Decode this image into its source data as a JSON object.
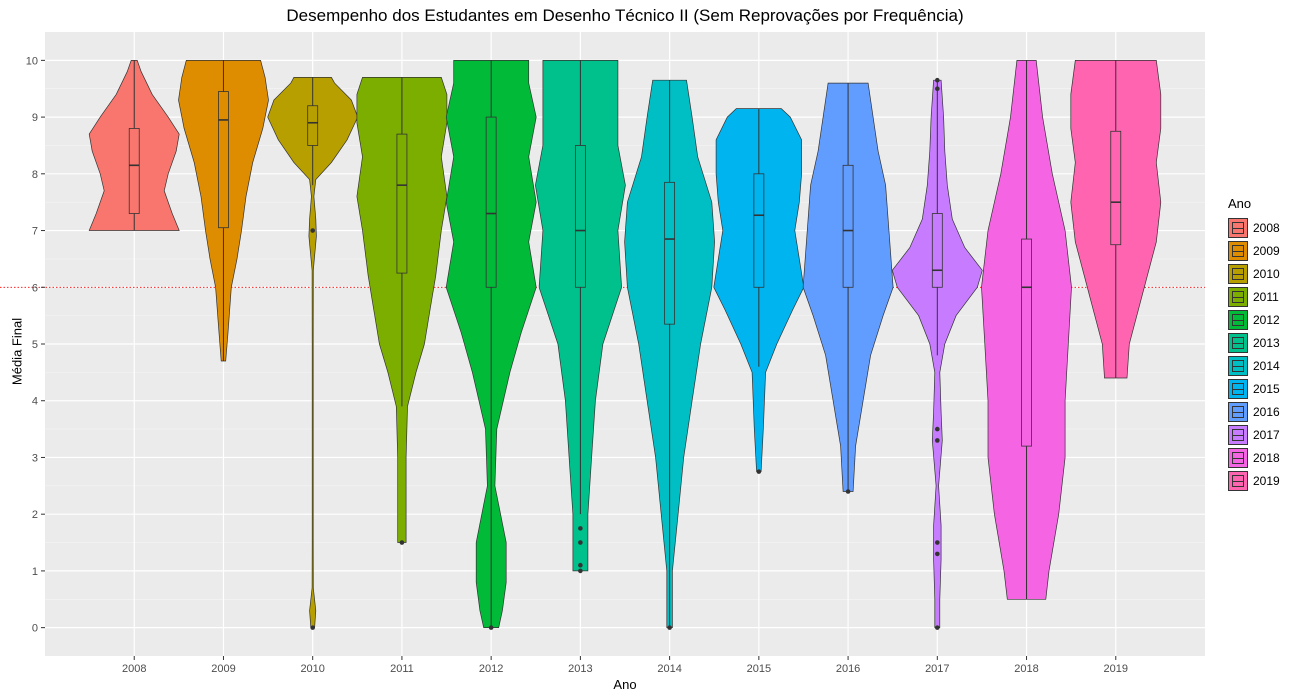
{
  "chart_data": {
    "type": "violin",
    "title": "Desempenho dos Estudantes em Desenho Técnico II (Sem Reprovações por Frequência)",
    "xlabel": "Ano",
    "ylabel": "Média Final",
    "ylim": [
      -0.5,
      10.5
    ],
    "yticks": [
      "0",
      "1",
      "2",
      "3",
      "4",
      "5",
      "6",
      "7",
      "8",
      "9",
      "10"
    ],
    "reference_line": {
      "y": 6,
      "color": "#ff0000",
      "style": "dotted"
    },
    "legend": {
      "title": "Ano",
      "position": "right"
    },
    "grid": true,
    "series": [
      {
        "name": "2008",
        "color": "#F8766D",
        "min": 7.0,
        "max": 10.0,
        "q1": 7.3,
        "median": 8.15,
        "q3": 8.8,
        "whisker_low": 7.0,
        "whisker_high": 10.0,
        "outliers": [],
        "density": [
          [
            7.0,
            0.45
          ],
          [
            7.3,
            0.38
          ],
          [
            7.7,
            0.3
          ],
          [
            8.0,
            0.34
          ],
          [
            8.4,
            0.42
          ],
          [
            8.7,
            0.45
          ],
          [
            9.0,
            0.34
          ],
          [
            9.4,
            0.18
          ],
          [
            9.8,
            0.07
          ],
          [
            10.0,
            0.03
          ]
        ]
      },
      {
        "name": "2009",
        "color": "#DE8C00",
        "min": 4.7,
        "max": 10.0,
        "q1": 7.05,
        "median": 8.95,
        "q3": 9.45,
        "whisker_low": 4.7,
        "whisker_high": 10.0,
        "outliers": [],
        "density": [
          [
            4.7,
            0.02
          ],
          [
            5.2,
            0.04
          ],
          [
            6.0,
            0.07
          ],
          [
            6.5,
            0.12
          ],
          [
            7.0,
            0.16
          ],
          [
            7.6,
            0.2
          ],
          [
            8.2,
            0.26
          ],
          [
            8.8,
            0.35
          ],
          [
            9.3,
            0.4
          ],
          [
            9.7,
            0.37
          ],
          [
            10.0,
            0.33
          ]
        ]
      },
      {
        "name": "2010",
        "color": "#B79F00",
        "min": 0.0,
        "max": 9.7,
        "q1": 8.5,
        "median": 8.9,
        "q3": 9.2,
        "whisker_low": 7.8,
        "whisker_high": 9.7,
        "outliers": [
          0.0,
          7.0
        ],
        "density": [
          [
            0.0,
            0.03
          ],
          [
            0.3,
            0.05
          ],
          [
            0.7,
            0.01
          ],
          [
            1.5,
            0.008
          ],
          [
            3.0,
            0.008
          ],
          [
            5.0,
            0.008
          ],
          [
            6.3,
            0.01
          ],
          [
            6.9,
            0.06
          ],
          [
            7.2,
            0.05
          ],
          [
            7.6,
            0.02
          ],
          [
            7.9,
            0.05
          ],
          [
            8.2,
            0.3
          ],
          [
            8.6,
            0.55
          ],
          [
            9.0,
            0.72
          ],
          [
            9.3,
            0.62
          ],
          [
            9.6,
            0.35
          ],
          [
            9.7,
            0.3
          ]
        ]
      },
      {
        "name": "2011",
        "color": "#7CAE00",
        "min": 1.5,
        "max": 9.7,
        "q1": 6.25,
        "median": 7.8,
        "q3": 8.7,
        "whisker_low": 3.9,
        "whisker_high": 9.7,
        "outliers": [
          1.5
        ],
        "density": [
          [
            1.5,
            0.015
          ],
          [
            3.0,
            0.015
          ],
          [
            3.9,
            0.02
          ],
          [
            4.5,
            0.05
          ],
          [
            5.0,
            0.08
          ],
          [
            5.6,
            0.1
          ],
          [
            6.2,
            0.12
          ],
          [
            7.0,
            0.14
          ],
          [
            7.6,
            0.16
          ],
          [
            8.3,
            0.14
          ],
          [
            8.9,
            0.16
          ],
          [
            9.4,
            0.16
          ],
          [
            9.7,
            0.14
          ]
        ]
      },
      {
        "name": "2012",
        "color": "#00BA38",
        "min": 0.0,
        "max": 10.0,
        "q1": 6.0,
        "median": 7.3,
        "q3": 9.0,
        "whisker_low": 0.0,
        "whisker_high": 10.0,
        "outliers": [
          0.0
        ],
        "density": [
          [
            0.0,
            0.02
          ],
          [
            0.3,
            0.03
          ],
          [
            0.8,
            0.04
          ],
          [
            1.5,
            0.04
          ],
          [
            2.5,
            0.01
          ],
          [
            3.5,
            0.015
          ],
          [
            4.5,
            0.05
          ],
          [
            5.2,
            0.08
          ],
          [
            6.0,
            0.12
          ],
          [
            6.8,
            0.1
          ],
          [
            7.5,
            0.12
          ],
          [
            8.3,
            0.1
          ],
          [
            9.0,
            0.12
          ],
          [
            9.6,
            0.1
          ],
          [
            10.0,
            0.1
          ]
        ]
      },
      {
        "name": "2013",
        "color": "#00C08B",
        "min": 1.0,
        "max": 10.0,
        "q1": 6.0,
        "median": 7.0,
        "q3": 8.5,
        "whisker_low": 2.0,
        "whisker_high": 10.0,
        "outliers": [
          1.0,
          1.1,
          1.5,
          1.75
        ],
        "density": [
          [
            1.0,
            0.02
          ],
          [
            1.5,
            0.02
          ],
          [
            2.0,
            0.02
          ],
          [
            3.0,
            0.03
          ],
          [
            4.0,
            0.04
          ],
          [
            5.0,
            0.06
          ],
          [
            6.0,
            0.11
          ],
          [
            7.0,
            0.1
          ],
          [
            7.8,
            0.12
          ],
          [
            8.5,
            0.1
          ],
          [
            9.3,
            0.1
          ],
          [
            10.0,
            0.1
          ]
        ]
      },
      {
        "name": "2014",
        "color": "#00BFC4",
        "min": 0.0,
        "max": 9.65,
        "q1": 5.35,
        "median": 6.85,
        "q3": 7.85,
        "whisker_low": 0.0,
        "whisker_high": 9.65,
        "outliers": [
          0.0
        ],
        "density": [
          [
            0.0,
            0.01
          ],
          [
            1.0,
            0.01
          ],
          [
            2.0,
            0.03
          ],
          [
            3.0,
            0.05
          ],
          [
            4.0,
            0.08
          ],
          [
            5.0,
            0.11
          ],
          [
            6.0,
            0.15
          ],
          [
            6.8,
            0.16
          ],
          [
            7.5,
            0.15
          ],
          [
            8.3,
            0.1
          ],
          [
            9.0,
            0.08
          ],
          [
            9.65,
            0.06
          ]
        ]
      },
      {
        "name": "2015",
        "color": "#00B4F0",
        "min": 2.75,
        "max": 9.15,
        "q1": 6.0,
        "median": 7.27,
        "q3": 8.0,
        "whisker_low": 4.6,
        "whisker_high": 9.15,
        "outliers": [
          2.75
        ],
        "density": [
          [
            2.75,
            0.01
          ],
          [
            3.5,
            0.02
          ],
          [
            4.5,
            0.03
          ],
          [
            5.0,
            0.08
          ],
          [
            5.6,
            0.15
          ],
          [
            6.0,
            0.2
          ],
          [
            6.5,
            0.18
          ],
          [
            7.0,
            0.16
          ],
          [
            7.5,
            0.18
          ],
          [
            8.0,
            0.19
          ],
          [
            8.6,
            0.19
          ],
          [
            9.0,
            0.14
          ],
          [
            9.15,
            0.1
          ]
        ]
      },
      {
        "name": "2016",
        "color": "#619CFF",
        "min": 2.4,
        "max": 9.6,
        "q1": 6.0,
        "median": 7.0,
        "q3": 8.15,
        "whisker_low": 2.4,
        "whisker_high": 9.6,
        "outliers": [
          2.4
        ],
        "density": [
          [
            2.4,
            0.02
          ],
          [
            3.2,
            0.03
          ],
          [
            4.0,
            0.06
          ],
          [
            4.8,
            0.09
          ],
          [
            5.5,
            0.14
          ],
          [
            6.0,
            0.18
          ],
          [
            6.6,
            0.17
          ],
          [
            7.2,
            0.16
          ],
          [
            7.8,
            0.15
          ],
          [
            8.4,
            0.12
          ],
          [
            9.0,
            0.1
          ],
          [
            9.6,
            0.08
          ]
        ]
      },
      {
        "name": "2017",
        "color": "#C77CFF",
        "min": 0.0,
        "max": 9.65,
        "q1": 6.0,
        "median": 6.3,
        "q3": 7.3,
        "whisker_low": 4.8,
        "whisker_high": 9.65,
        "outliers": [
          0.0,
          1.3,
          1.5,
          3.3,
          3.5,
          9.5,
          9.65
        ],
        "density": [
          [
            0.0,
            0.02
          ],
          [
            0.5,
            0.02
          ],
          [
            1.2,
            0.03
          ],
          [
            1.8,
            0.03
          ],
          [
            2.5,
            0.01
          ],
          [
            3.3,
            0.04
          ],
          [
            3.8,
            0.03
          ],
          [
            4.5,
            0.02
          ],
          [
            5.0,
            0.06
          ],
          [
            5.5,
            0.15
          ],
          [
            6.0,
            0.32
          ],
          [
            6.3,
            0.36
          ],
          [
            6.7,
            0.22
          ],
          [
            7.2,
            0.12
          ],
          [
            7.8,
            0.08
          ],
          [
            8.4,
            0.06
          ],
          [
            9.0,
            0.05
          ],
          [
            9.65,
            0.03
          ]
        ]
      },
      {
        "name": "2018",
        "color": "#F564E3",
        "min": 0.5,
        "max": 10.0,
        "q1": 3.2,
        "median": 6.0,
        "q3": 6.85,
        "whisker_low": 0.5,
        "whisker_high": 10.0,
        "outliers": [],
        "density": [
          [
            0.5,
            0.06
          ],
          [
            1.0,
            0.07
          ],
          [
            2.0,
            0.1
          ],
          [
            3.0,
            0.12
          ],
          [
            4.0,
            0.12
          ],
          [
            5.0,
            0.13
          ],
          [
            6.0,
            0.14
          ],
          [
            7.0,
            0.12
          ],
          [
            8.0,
            0.08
          ],
          [
            9.0,
            0.05
          ],
          [
            10.0,
            0.03
          ]
        ]
      },
      {
        "name": "2019",
        "color": "#FF64B0",
        "min": 4.4,
        "max": 10.0,
        "q1": 6.75,
        "median": 7.5,
        "q3": 8.75,
        "whisker_low": 4.4,
        "whisker_high": 10.0,
        "outliers": [],
        "density": [
          [
            4.4,
            0.05
          ],
          [
            5.0,
            0.06
          ],
          [
            5.6,
            0.1
          ],
          [
            6.2,
            0.14
          ],
          [
            6.8,
            0.18
          ],
          [
            7.5,
            0.2
          ],
          [
            8.2,
            0.18
          ],
          [
            8.8,
            0.2
          ],
          [
            9.4,
            0.2
          ],
          [
            10.0,
            0.18
          ]
        ]
      }
    ]
  }
}
